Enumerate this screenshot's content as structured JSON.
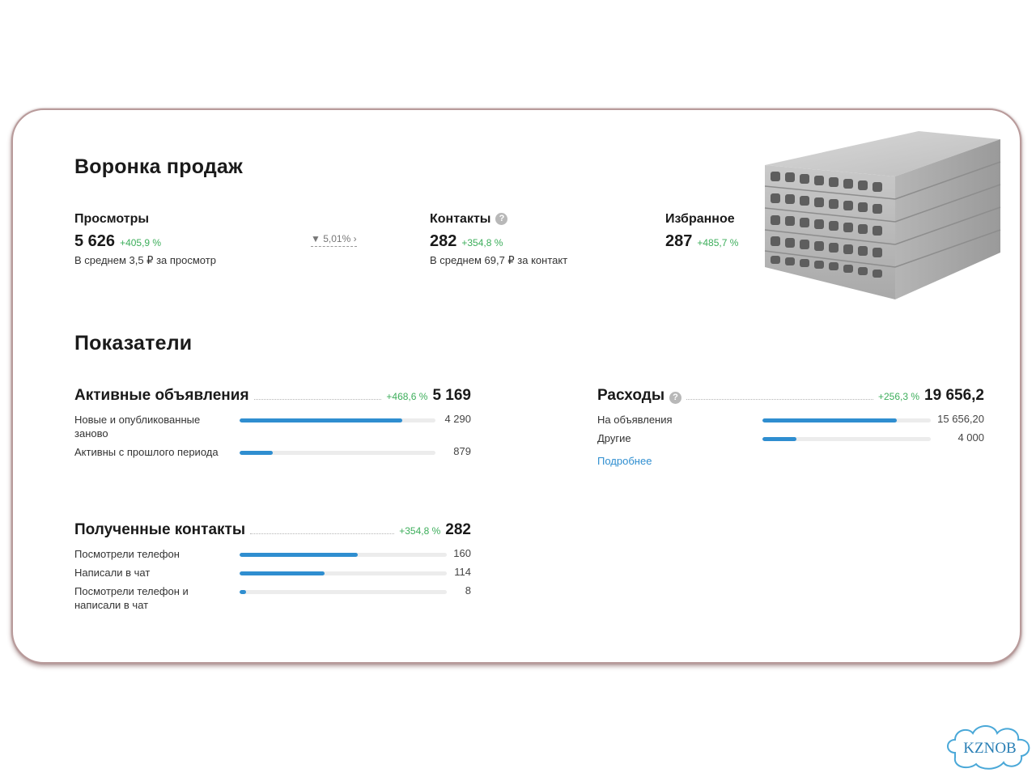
{
  "funnel": {
    "title": "Воронка продаж",
    "views": {
      "label": "Просмотры",
      "value": "5 626",
      "change": "+405,9 %",
      "avg": "В среднем 3,5 ₽ за просмотр"
    },
    "conversion": {
      "label": "5,01%",
      "icon": "filter-icon"
    },
    "contacts": {
      "label": "Контакты",
      "help": "?",
      "value": "282",
      "change": "+354,8 %",
      "avg": "В среднем 69,7 ₽ за контакт"
    },
    "favorites": {
      "label": "Избранное",
      "value": "287",
      "change": "+485,7 %"
    }
  },
  "metrics": {
    "title": "Показатели",
    "active_ads": {
      "title": "Активные объявления",
      "change": "+468,6 %",
      "total": "5 169",
      "rows": [
        {
          "label": "Новые и опубликованные заново",
          "value": "4 290",
          "fraction": 0.83
        },
        {
          "label": "Активны с прошлого периода",
          "value": "879",
          "fraction": 0.17
        }
      ]
    },
    "expenses": {
      "title": "Расходы",
      "help": "?",
      "change": "+256,3 %",
      "total": "19 656,2",
      "rows": [
        {
          "label": "На объявления",
          "value": "15 656,20",
          "fraction": 0.8
        },
        {
          "label": "Другие",
          "value": "4 000",
          "fraction": 0.2
        }
      ],
      "link": "Подробнее"
    },
    "received_contacts": {
      "title": "Полученные контакты",
      "change": "+354,8 %",
      "total": "282",
      "rows": [
        {
          "label": "Посмотрели телефон",
          "value": "160",
          "fraction": 0.57
        },
        {
          "label": "Написали в чат",
          "value": "114",
          "fraction": 0.41
        },
        {
          "label": "Посмотрели телефон и написали в чат",
          "value": "8",
          "fraction": 0.03
        }
      ]
    }
  },
  "watermark": {
    "text": "KZNOB"
  },
  "colors": {
    "bar": "#2f8ed0",
    "track": "#ececec",
    "positive": "#3dae5b",
    "link": "#2f8ed0"
  }
}
